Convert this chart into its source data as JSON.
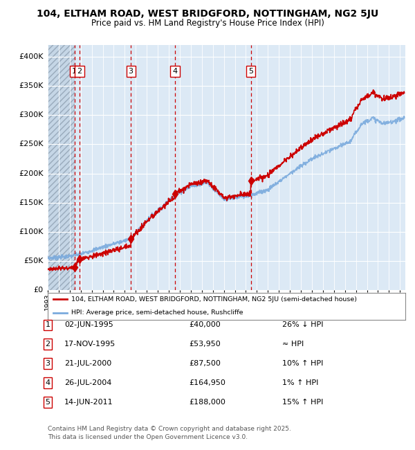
{
  "title1": "104, ELTHAM ROAD, WEST BRIDGFORD, NOTTINGHAM, NG2 5JU",
  "title2": "Price paid vs. HM Land Registry's House Price Index (HPI)",
  "xlim_start": 1993.0,
  "xlim_end": 2025.5,
  "ylim": [
    0,
    420000
  ],
  "transactions": [
    {
      "num": 1,
      "date_label": "02-JUN-1995",
      "year": 1995.42,
      "price": 40000,
      "hpi_note": "26% ↓ HPI"
    },
    {
      "num": 2,
      "date_label": "17-NOV-1995",
      "year": 1995.88,
      "price": 53950,
      "hpi_note": "≈ HPI"
    },
    {
      "num": 3,
      "date_label": "21-JUL-2000",
      "year": 2000.55,
      "price": 87500,
      "hpi_note": "10% ↑ HPI"
    },
    {
      "num": 4,
      "date_label": "26-JUL-2004",
      "year": 2004.57,
      "price": 164950,
      "hpi_note": "1% ↑ HPI"
    },
    {
      "num": 5,
      "date_label": "14-JUN-2011",
      "year": 2011.45,
      "price": 188000,
      "hpi_note": "15% ↑ HPI"
    }
  ],
  "legend_line1": "104, ELTHAM ROAD, WEST BRIDGFORD, NOTTINGHAM, NG2 5JU (semi-detached house)",
  "legend_line2": "HPI: Average price, semi-detached house, Rushcliffe",
  "footer1": "Contains HM Land Registry data © Crown copyright and database right 2025.",
  "footer2": "This data is licensed under the Open Government Licence v3.0.",
  "property_color": "#cc0000",
  "hpi_color": "#7aaadd",
  "bg_color": "#dce9f5",
  "yticks": [
    0,
    50000,
    100000,
    150000,
    200000,
    250000,
    300000,
    350000,
    400000
  ],
  "ytick_labels": [
    "£0",
    "£50K",
    "£100K",
    "£150K",
    "£200K",
    "£250K",
    "£300K",
    "£350K",
    "£400K"
  ]
}
